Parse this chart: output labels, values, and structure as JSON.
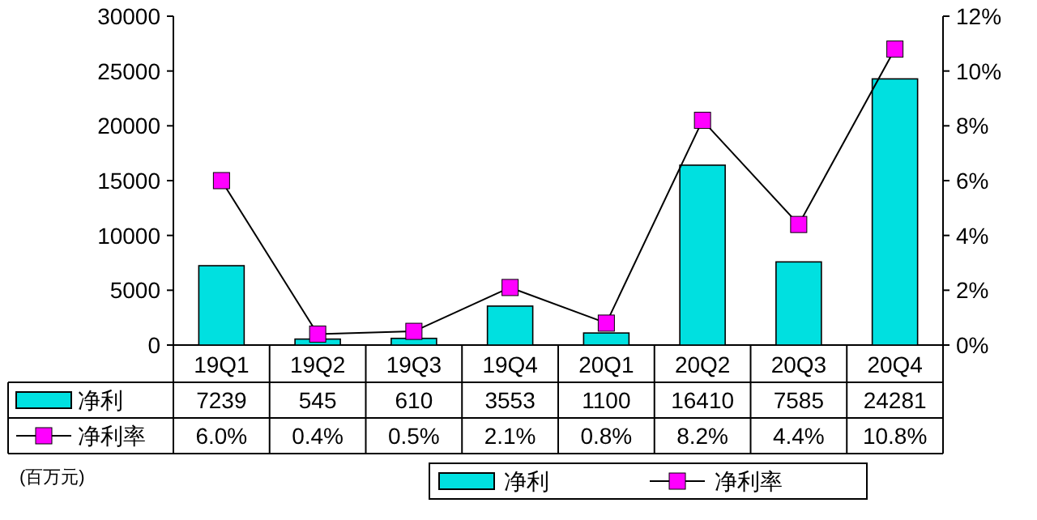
{
  "chart_data": {
    "type": "bar",
    "categories": [
      "19Q1",
      "19Q2",
      "19Q3",
      "19Q4",
      "20Q1",
      "20Q2",
      "20Q3",
      "20Q4"
    ],
    "series": [
      {
        "name": "净利",
        "color": "#00e0e0",
        "values": [
          7239,
          545,
          610,
          3553,
          1100,
          16410,
          7585,
          24281
        ],
        "value_labels": [
          "7239",
          "545",
          "610",
          "3553",
          "1100",
          "16410",
          "7585",
          "24281"
        ]
      },
      {
        "name": "净利率",
        "type": "line",
        "axis": "y2",
        "color": "#ff00ff",
        "values": [
          6.0,
          0.4,
          0.5,
          2.1,
          0.8,
          8.2,
          4.4,
          10.8
        ],
        "value_labels": [
          "6.0%",
          "0.4%",
          "0.5%",
          "2.1%",
          "0.8%",
          "8.2%",
          "4.4%",
          "10.8%"
        ]
      }
    ],
    "ylim": [
      0,
      30000
    ],
    "yticks": [
      0,
      5000,
      10000,
      15000,
      20000,
      25000,
      30000
    ],
    "y2lim": [
      0,
      12
    ],
    "y2ticks": [
      {
        "value": 0,
        "label": "0%"
      },
      {
        "value": 2,
        "label": "2%"
      },
      {
        "value": 4,
        "label": "4%"
      },
      {
        "value": 6,
        "label": "6%"
      },
      {
        "value": 8,
        "label": "8%"
      },
      {
        "value": 10,
        "label": "10%"
      },
      {
        "value": 12,
        "label": "12%"
      }
    ],
    "marker": "square",
    "legend": "bottom",
    "grid": false,
    "annotations": [
      "(百万元)"
    ]
  }
}
